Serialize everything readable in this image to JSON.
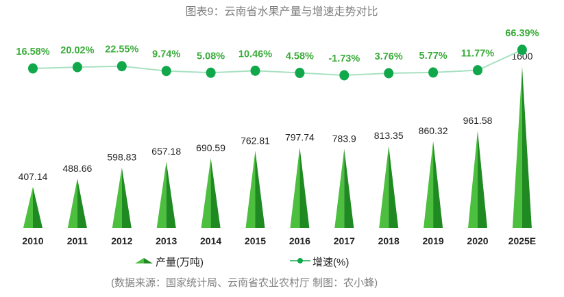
{
  "chart_data": {
    "type": "bar+line",
    "title": "图表9：云南省水果产量与增速走势对比",
    "categories": [
      "2010",
      "2011",
      "2012",
      "2013",
      "2014",
      "2015",
      "2016",
      "2017",
      "2018",
      "2019",
      "2020",
      "2025E"
    ],
    "series": [
      {
        "name": "产量(万吨)",
        "type": "bar",
        "shape": "cone",
        "values": [
          407.14,
          488.66,
          598.83,
          657.18,
          690.59,
          762.81,
          797.74,
          783.9,
          813.35,
          860.32,
          961.58,
          1600
        ],
        "labels": [
          "407.14",
          "488.66",
          "598.83",
          "657.18",
          "690.59",
          "762.81",
          "797.74",
          "783.9",
          "813.35",
          "860.32",
          "961.58",
          "1600"
        ]
      },
      {
        "name": "增速(%)",
        "type": "line",
        "axis": "secondary",
        "values": [
          16.58,
          20.02,
          22.55,
          9.74,
          5.08,
          10.46,
          4.58,
          -1.73,
          3.76,
          5.77,
          11.77,
          66.39
        ],
        "labels": [
          "16.58%",
          "20.02%",
          "22.55%",
          "9.74%",
          "5.08%",
          "10.46%",
          "4.58%",
          "-1.73%",
          "3.76%",
          "5.77%",
          "11.77%",
          "66.39%"
        ]
      }
    ],
    "ylim": [
      0,
      1600
    ],
    "grid": false,
    "legend": "bottom",
    "source": "(数据来源：国家统计局、云南省农业农村厅  制图：农小蜂)",
    "colors": {
      "bar_light": "#4cbf3e",
      "bar_dark": "#1f8a22",
      "line": "#a8e0c0",
      "marker": "#10a84a",
      "line_label": "#3aab3a"
    }
  }
}
